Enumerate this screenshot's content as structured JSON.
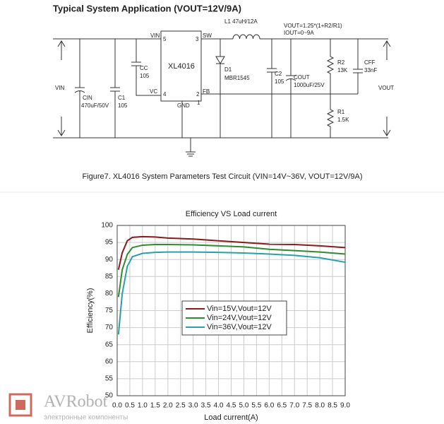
{
  "circuit": {
    "title": "Typical System Application (VOUT=12V/9A)",
    "labels": [
      "VIN",
      "SW",
      "XL4016",
      "VC",
      "GND",
      "FB",
      "5",
      "3",
      "4",
      "2",
      "1",
      "L1 47uH/12A",
      "D1",
      "MBR1545",
      "CC",
      "105",
      "CIN",
      "470uF/50V",
      "C1",
      "105",
      "C2",
      "105",
      "COUT",
      "1000uF/25V",
      "VOUT=1.25*(1+R2/R1)",
      "IOUT=0~9A",
      "R2",
      "13K",
      "CFF",
      "33nF",
      "R1",
      "1.5K",
      "VIN",
      "VOUT"
    ],
    "caption": "Figure7. XL4016 System Parameters Test Circuit (VIN=14V~36V, VOUT=12V/9A)"
  },
  "chart_data": {
    "type": "line",
    "title": "Efficiency VS Load current",
    "x_label": "Load current(A)",
    "y_label": "Efficiency(%)",
    "x": [
      0.05,
      0.2,
      0.4,
      0.6,
      1.0,
      1.5,
      2.0,
      3.0,
      4.0,
      5.0,
      6.0,
      7.0,
      8.0,
      9.0
    ],
    "series": [
      {
        "name": "Vin=15V,Vout=12V",
        "color": "#8b1a1a",
        "values": [
          87,
          92,
          95.5,
          96.5,
          96.7,
          96.6,
          96.3,
          96,
          95.5,
          95,
          94.5,
          94.4,
          94,
          93.5
        ]
      },
      {
        "name": "Vin=24V,Vout=12V",
        "color": "#2e8b2e",
        "values": [
          79,
          87,
          91.5,
          93.5,
          94.2,
          94.4,
          94.4,
          94.3,
          94,
          93.7,
          93,
          92.6,
          92.2,
          91.6
        ]
      },
      {
        "name": "Vin=36V,Vout=12V",
        "color": "#2aa0a8",
        "values": [
          68,
          80,
          88,
          90.8,
          91.8,
          92.1,
          92.2,
          92.2,
          92.1,
          91.9,
          91.6,
          91.2,
          90.5,
          89.2
        ]
      }
    ],
    "xlim": [
      0,
      9
    ],
    "ylim": [
      50,
      100
    ],
    "xticks": [
      {
        "value": 0,
        "label": "0.0"
      },
      {
        "value": 0.5,
        "label": "0.5"
      },
      {
        "value": 1,
        "label": "1.0"
      },
      {
        "value": 1.5,
        "label": "1.5"
      },
      {
        "value": 2,
        "label": "2.0"
      },
      {
        "value": 2.5,
        "label": "2.5"
      },
      {
        "value": 3,
        "label": "3.0"
      },
      {
        "value": 3.5,
        "label": "3.5"
      },
      {
        "value": 4,
        "label": "4.0"
      },
      {
        "value": 4.5,
        "label": "4.5"
      },
      {
        "value": 5,
        "label": "5.0"
      },
      {
        "value": 5.5,
        "label": "5.5"
      },
      {
        "value": 6,
        "label": "6.0"
      },
      {
        "value": 6.5,
        "label": "6.5"
      },
      {
        "value": 7,
        "label": "7.0"
      },
      {
        "value": 7.5,
        "label": "7.5"
      },
      {
        "value": 8,
        "label": "8.0"
      },
      {
        "value": 8.5,
        "label": "8.5"
      },
      {
        "value": 9,
        "label": "9.0"
      }
    ],
    "yticks": [
      50,
      55,
      60,
      65,
      70,
      75,
      80,
      85,
      90,
      95,
      100
    ],
    "grid": true
  },
  "watermark": {
    "brand": "AVRobot",
    "tagline": "электронные компоненты"
  }
}
